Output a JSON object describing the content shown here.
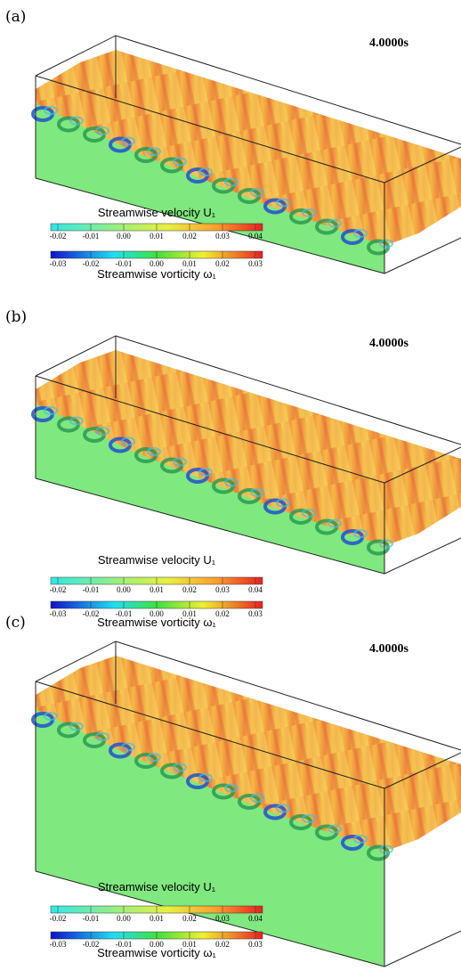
{
  "panels": [
    {
      "label": "(a)",
      "time": "4.0000s",
      "velocity_colorbar": {
        "title": "Streamwise velocity U₁",
        "ticks": [
          "-0.02",
          "-0.01",
          "0.00",
          "0.01",
          "0.02",
          "0.03",
          "0.04"
        ]
      },
      "vorticity_colorbar": {
        "title": "Streamwise vorticity ω₁",
        "ticks": [
          "-0.03",
          "-0.02",
          "-0.01",
          "0.00",
          "0.01",
          "0.02",
          "0.03"
        ]
      }
    },
    {
      "label": "(b)",
      "time": "4.0000s",
      "velocity_colorbar": {
        "title": "Streamwise velocity U₁",
        "ticks": [
          "-0.02",
          "-0.01",
          "0.00",
          "0.01",
          "0.02",
          "0.03",
          "0.04"
        ]
      },
      "vorticity_colorbar": {
        "title": "Streamwise vorticity ω₁",
        "ticks": [
          "-0.03",
          "-0.02",
          "-0.01",
          "0.00",
          "0.01",
          "0.02",
          "0.03"
        ]
      }
    },
    {
      "label": "(c)",
      "time": "4.0000s",
      "velocity_colorbar": {
        "title": "Streamwise velocity U₁",
        "ticks": [
          "-0.02",
          "-0.01",
          "0.00",
          "0.01",
          "0.02",
          "0.03",
          "0.04"
        ]
      },
      "vorticity_colorbar": {
        "title": "Streamwise vorticity ω₁",
        "ticks": [
          "-0.03",
          "-0.02",
          "-0.01",
          "0.00",
          "0.01",
          "0.02",
          "0.03"
        ]
      }
    }
  ]
}
